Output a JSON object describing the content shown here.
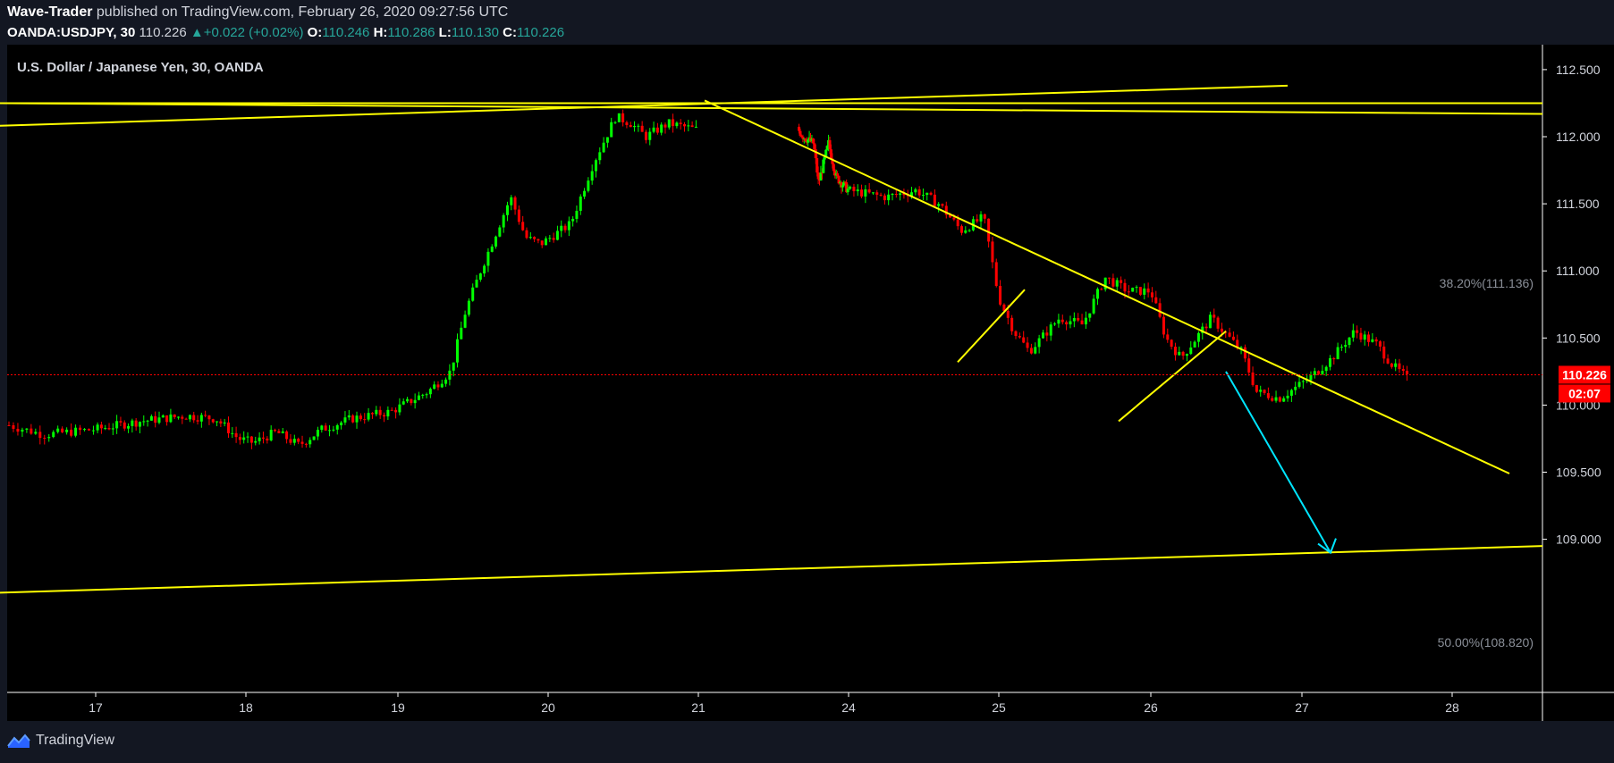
{
  "header": {
    "author": "Wave-Trader",
    "published_text": "published on TradingView.com, February 26, 2020 09:27:56 UTC",
    "symbol": "OANDA:USDJPY, 30",
    "last": "110.226",
    "change_arrow": "▲",
    "change": "+0.022 (+0.02%)",
    "o_label": "O:",
    "o_value": "110.246",
    "h_label": "H:",
    "h_value": "110.286",
    "l_label": "L:",
    "l_value": "110.130",
    "c_label": "C:",
    "c_value": "110.226"
  },
  "footer": {
    "brand": "TradingView",
    "logo_icon": "tradingview-logo-icon"
  },
  "colors": {
    "background": "#000000",
    "page": "#131722",
    "bull": "#00ff00",
    "bear": "#ff0000",
    "trendline": "#ffff00",
    "arrow": "#00e5ff",
    "price_badge": "#ff0000"
  },
  "chart_data": {
    "type": "candlestick",
    "title": "U.S. Dollar / Japanese Yen, 30, OANDA",
    "x_ticks": [
      "17",
      "18",
      "19",
      "20",
      "21",
      "24",
      "25",
      "26",
      "27",
      "28"
    ],
    "y_ticks": [
      "112.500",
      "112.000",
      "111.500",
      "111.000",
      "110.500",
      "110.000",
      "109.500",
      "109.000"
    ],
    "ylim": [
      108.6,
      112.7
    ],
    "current_price": {
      "value": 110.226,
      "label": "110.226",
      "countdown": "02:07"
    },
    "fib_levels": [
      {
        "label": "38.20%(111.136)",
        "value": 111.136
      },
      {
        "label": "50.00%(108.820)",
        "value": 108.82
      }
    ],
    "price_path": [
      [
        16.5,
        109.85
      ],
      [
        16.7,
        109.78
      ],
      [
        17.0,
        109.82
      ],
      [
        17.3,
        109.88
      ],
      [
        17.6,
        109.92
      ],
      [
        17.8,
        109.9
      ],
      [
        17.95,
        109.75
      ],
      [
        18.05,
        109.72
      ],
      [
        18.2,
        109.8
      ],
      [
        18.35,
        109.7
      ],
      [
        18.5,
        109.82
      ],
      [
        18.7,
        109.9
      ],
      [
        18.95,
        109.95
      ],
      [
        19.2,
        110.1
      ],
      [
        19.35,
        110.25
      ],
      [
        19.45,
        110.7
      ],
      [
        19.55,
        111.0
      ],
      [
        19.75,
        111.55
      ],
      [
        19.85,
        111.25
      ],
      [
        19.95,
        111.2
      ],
      [
        20.15,
        111.35
      ],
      [
        20.3,
        111.8
      ],
      [
        20.45,
        112.15
      ],
      [
        20.55,
        112.1
      ],
      [
        20.65,
        112.0
      ],
      [
        20.8,
        112.1
      ],
      [
        21.0,
        112.05
      ],
      [
        21.1,
        112.0
      ],
      [
        21.3,
        111.95
      ],
      [
        21.4,
        111.65
      ],
      [
        21.6,
        111.95
      ],
      [
        21.75,
        111.7
      ],
      [
        22.0,
        111.6
      ],
      [
        22.25,
        111.55
      ],
      [
        22.45,
        111.6
      ],
      [
        22.6,
        111.5
      ],
      [
        22.75,
        111.3
      ],
      [
        22.9,
        111.4
      ],
      [
        23.0,
        110.8
      ],
      [
        23.1,
        110.55
      ],
      [
        23.2,
        110.4
      ],
      [
        23.4,
        110.65
      ],
      [
        23.55,
        110.6
      ],
      [
        23.7,
        110.95
      ],
      [
        23.85,
        110.85
      ],
      [
        24.0,
        110.85
      ],
      [
        24.1,
        110.5
      ],
      [
        24.2,
        110.35
      ],
      [
        24.4,
        110.65
      ],
      [
        24.6,
        110.4
      ],
      [
        24.7,
        110.1
      ],
      [
        24.85,
        110.05
      ],
      [
        25.05,
        110.2
      ],
      [
        25.2,
        110.35
      ],
      [
        25.35,
        110.55
      ],
      [
        25.5,
        110.45
      ],
      [
        25.6,
        110.3
      ],
      [
        25.7,
        110.2
      ]
    ],
    "lines": [
      {
        "name": "upper-flat-1",
        "points": [
          [
            16.4,
            112.25
          ],
          [
            28.6,
            112.25
          ]
        ]
      },
      {
        "name": "upper-flat-2",
        "points": [
          [
            16.4,
            112.25
          ],
          [
            28.6,
            112.17
          ]
        ]
      },
      {
        "name": "upper-rising",
        "points": [
          [
            16.4,
            112.08
          ],
          [
            24.9,
            112.38
          ]
        ]
      },
      {
        "name": "descending-trendline",
        "points": [
          [
            21.05,
            112.27
          ],
          [
            28.4,
            109.49
          ]
        ]
      },
      {
        "name": "lower-support",
        "points": [
          [
            16.4,
            108.6
          ],
          [
            28.6,
            108.95
          ]
        ]
      },
      {
        "name": "flag-1",
        "points": [
          [
            23.45,
            110.32
          ],
          [
            24.05,
            110.86
          ]
        ]
      },
      {
        "name": "flag-2",
        "points": [
          [
            24.65,
            109.88
          ],
          [
            25.85,
            110.55
          ]
        ]
      }
    ],
    "projection_arrow": {
      "from": [
        25.9,
        110.25
      ],
      "to": [
        26.85,
        108.9
      ]
    }
  }
}
